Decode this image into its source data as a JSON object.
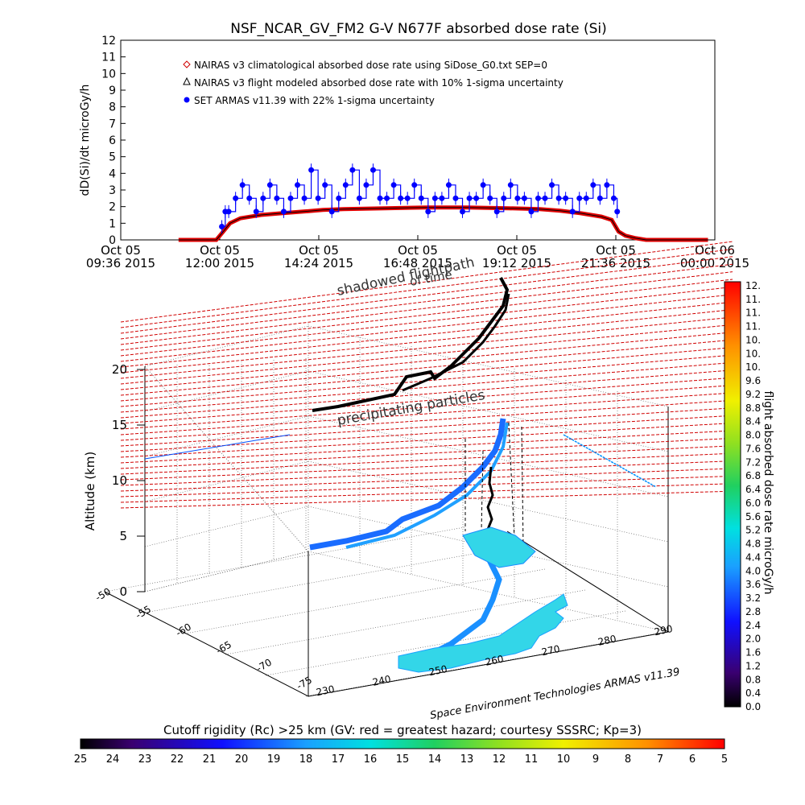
{
  "top_chart": {
    "title": "NSF_NCAR_GV_FM2 G-V     N677F  absorbed dose rate (Si)",
    "ylabel": "dD(Si)/dt microGy/h",
    "legend": [
      {
        "label": "NAIRAS v3 climatological absorbed dose rate using SiDose_G0.txt SEP=0",
        "color": "#d00000",
        "marker": "diamond"
      },
      {
        "label": "NAIRAS v3 flight modeled absorbed dose rate with 10% 1-sigma uncertainty",
        "color": "#000000",
        "marker": "triangle"
      },
      {
        "label": "SET ARMAS v11.39 with 22% 1-sigma uncertainty",
        "color": "#0000ff",
        "marker": "circle"
      }
    ],
    "x_ticks": [
      {
        "l1": "Oct 05",
        "l2": "09:36 2015"
      },
      {
        "l1": "Oct 05",
        "l2": "12:00 2015"
      },
      {
        "l1": "Oct 05",
        "l2": "14:24 2015"
      },
      {
        "l1": "Oct 05",
        "l2": "16:48 2015"
      },
      {
        "l1": "Oct 05",
        "l2": "19:12 2015"
      },
      {
        "l1": "Oct 05",
        "l2": "21:36 2015"
      },
      {
        "l1": "Oct 06",
        "l2": "00:00 2015"
      }
    ],
    "y_ticks": [
      "0",
      "1",
      "2",
      "3",
      "4",
      "5",
      "6",
      "7",
      "8",
      "9",
      "10",
      "11",
      "12"
    ]
  },
  "chart_data": [
    {
      "type": "line",
      "title": "NSF_NCAR_GV_FM2 G-V     N677F  absorbed dose rate (Si)",
      "xlabel": "",
      "ylabel": "dD(Si)/dt microGy/h",
      "xlim": [
        "2015-10-05 09:36",
        "2015-10-06 00:00"
      ],
      "ylim": [
        0,
        12
      ],
      "series": [
        {
          "name": "NAIRAS v3 climatological absorbed dose rate using SiDose_G0.txt SEP=0",
          "x": [
            "2015-10-05 11:00",
            "2015-10-05 11:55",
            "2015-10-05 12:05",
            "2015-10-05 12:15",
            "2015-10-05 12:30",
            "2015-10-05 13:00",
            "2015-10-05 13:30",
            "2015-10-05 14:00",
            "2015-10-05 14:30",
            "2015-10-05 15:00",
            "2015-10-05 16:00",
            "2015-10-05 17:00",
            "2015-10-05 18:00",
            "2015-10-05 19:00",
            "2015-10-05 19:45",
            "2015-10-05 20:15",
            "2015-10-05 20:45",
            "2015-10-05 21:15",
            "2015-10-05 21:30",
            "2015-10-05 21:40",
            "2015-10-05 21:50",
            "2015-10-05 22:05",
            "2015-10-05 22:20",
            "2015-10-05 23:50"
          ],
          "y": [
            0,
            0,
            0.5,
            1.0,
            1.3,
            1.5,
            1.6,
            1.7,
            1.8,
            1.85,
            1.9,
            1.95,
            1.95,
            1.9,
            1.85,
            1.75,
            1.6,
            1.4,
            1.2,
            0.5,
            0.25,
            0.1,
            0,
            0
          ]
        },
        {
          "name": "SET ARMAS v11.39 with 22% 1-sigma uncertainty",
          "x": [
            "2015-10-05 12:03",
            "2015-10-05 12:08",
            "2015-10-05 12:13",
            "2015-10-05 12:23",
            "2015-10-05 12:33",
            "2015-10-05 12:43",
            "2015-10-05 12:53",
            "2015-10-05 13:03",
            "2015-10-05 13:13",
            "2015-10-05 13:23",
            "2015-10-05 13:33",
            "2015-10-05 13:43",
            "2015-10-05 13:53",
            "2015-10-05 14:03",
            "2015-10-05 14:13",
            "2015-10-05 14:23",
            "2015-10-05 14:33",
            "2015-10-05 14:43",
            "2015-10-05 14:53",
            "2015-10-05 15:03",
            "2015-10-05 15:13",
            "2015-10-05 15:23",
            "2015-10-05 15:33",
            "2015-10-05 15:43",
            "2015-10-05 15:53",
            "2015-10-05 16:03",
            "2015-10-05 16:13",
            "2015-10-05 16:23",
            "2015-10-05 16:33",
            "2015-10-05 16:43",
            "2015-10-05 16:53",
            "2015-10-05 17:03",
            "2015-10-05 17:13",
            "2015-10-05 17:23",
            "2015-10-05 17:33",
            "2015-10-05 17:43",
            "2015-10-05 17:53",
            "2015-10-05 18:03",
            "2015-10-05 18:13",
            "2015-10-05 18:23",
            "2015-10-05 18:33",
            "2015-10-05 18:43",
            "2015-10-05 18:53",
            "2015-10-05 19:03",
            "2015-10-05 19:13",
            "2015-10-05 19:23",
            "2015-10-05 19:33",
            "2015-10-05 19:43",
            "2015-10-05 19:53",
            "2015-10-05 20:03",
            "2015-10-05 20:13",
            "2015-10-05 20:23",
            "2015-10-05 20:33",
            "2015-10-05 20:43",
            "2015-10-05 20:53",
            "2015-10-05 21:03",
            "2015-10-05 21:13",
            "2015-10-05 21:23",
            "2015-10-05 21:33",
            "2015-10-05 21:38"
          ],
          "y": [
            0.8,
            1.7,
            1.7,
            2.5,
            3.3,
            2.5,
            1.7,
            2.5,
            3.3,
            2.5,
            1.7,
            2.5,
            3.3,
            2.5,
            4.2,
            2.5,
            3.3,
            1.7,
            2.5,
            3.3,
            4.2,
            2.5,
            3.3,
            4.2,
            2.5,
            2.5,
            3.3,
            2.5,
            2.5,
            3.3,
            2.5,
            1.7,
            2.5,
            2.5,
            3.3,
            2.5,
            1.7,
            2.5,
            2.5,
            3.3,
            2.5,
            1.7,
            2.5,
            3.3,
            2.5,
            2.5,
            1.7,
            2.5,
            2.5,
            3.3,
            2.5,
            2.5,
            1.7,
            2.5,
            2.5,
            3.3,
            2.5,
            3.3,
            2.5,
            1.7
          ]
        }
      ]
    }
  ],
  "plot3d": {
    "z_axis_label": "Altitude (km)",
    "z_ticks": [
      "0",
      "5",
      "10",
      "15",
      "20"
    ],
    "lat_ticks": [
      "-50",
      "-55",
      "-60",
      "-65",
      "-70",
      "-75"
    ],
    "lon_ticks": [
      "230",
      "240",
      "250",
      "260",
      "270",
      "280",
      "290"
    ],
    "annotations": {
      "shadowed_flightpath": "shadowed flightpath",
      "of_time": "of time",
      "precipitating_particles": "precipitating particles"
    },
    "credit": "Space Environment Technologies ARMAS v11.39"
  },
  "right_colorbar": {
    "label": "flight absorbed dose rate microGy/h",
    "ticks": [
      "12.",
      "11.",
      "11.",
      "11.",
      "10.",
      "10.",
      "10.",
      "9.6",
      "9.2",
      "8.8",
      "8.4",
      "8.0",
      "7.6",
      "7.2",
      "6.8",
      "6.4",
      "6.0",
      "5.6",
      "5.2",
      "4.8",
      "4.4",
      "4.0",
      "3.6",
      "3.2",
      "2.8",
      "2.4",
      "2.0",
      "1.6",
      "1.2",
      "0.8",
      "0.4",
      "0.0"
    ]
  },
  "bottom_colorbar": {
    "title": "Cutoff rigidity (Rc) >25 km (GV: red = greatest hazard; courtesy SSSRC; Kp=3)",
    "ticks": [
      "25",
      "24",
      "23",
      "22",
      "21",
      "20",
      "19",
      "18",
      "17",
      "16",
      "15",
      "14",
      "13",
      "12",
      "11",
      "10",
      "9",
      "8",
      "7",
      "6",
      "5"
    ]
  }
}
